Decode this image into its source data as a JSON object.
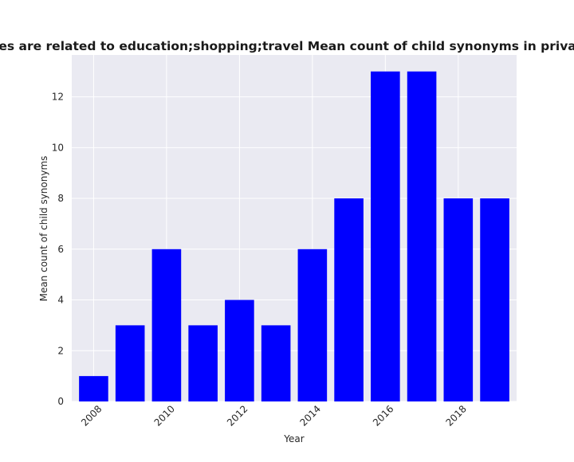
{
  "colors": {
    "plot_background": "#eaeaf2",
    "grid": "#ffffff",
    "bar": "#0000ff"
  },
  "chart_data": {
    "type": "bar",
    "title": "Categories are related to education;shopping;travel Mean count of child synonyms in privacy policies",
    "xlabel": "Year",
    "ylabel": "Mean count of child synonyms",
    "categories": [
      2008,
      2009,
      2010,
      2011,
      2012,
      2013,
      2014,
      2015,
      2016,
      2017,
      2018,
      2019
    ],
    "values": [
      1,
      3,
      6,
      3,
      4,
      3,
      6,
      8,
      13,
      13,
      8,
      8
    ],
    "x_ticks": [
      2008,
      2010,
      2012,
      2014,
      2016,
      2018
    ],
    "y_ticks": [
      0,
      2,
      4,
      6,
      8,
      10,
      12
    ],
    "ylim": [
      0,
      13.65
    ],
    "grid": true,
    "legend": "none"
  }
}
